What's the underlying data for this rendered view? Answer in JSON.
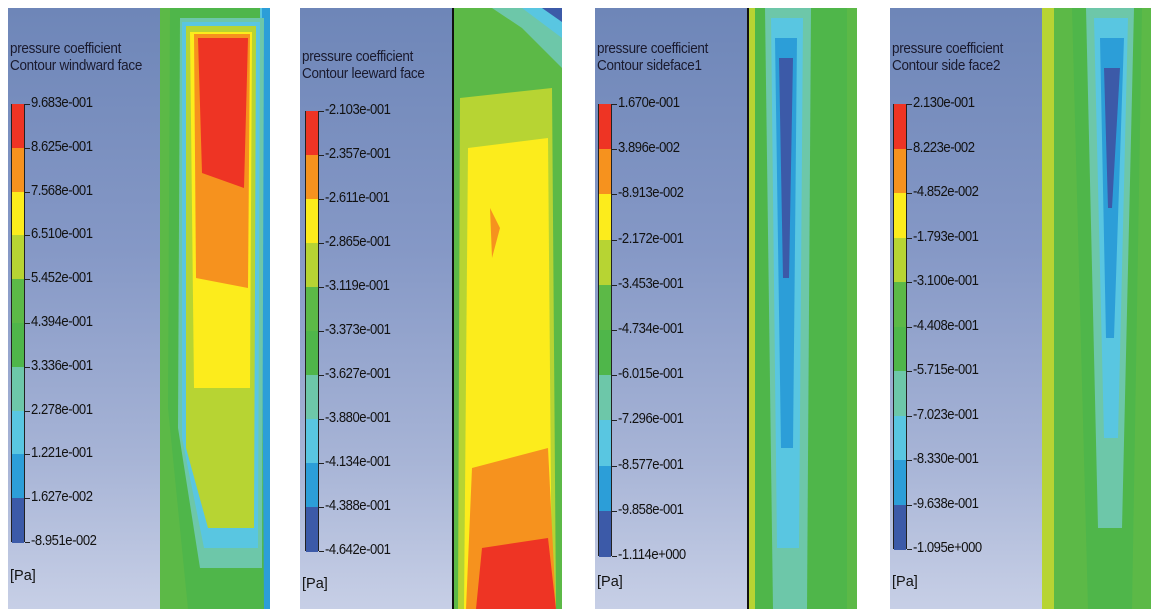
{
  "panels": [
    {
      "title1": "pressure coefficient",
      "title2": "Contour windward face",
      "levels": [
        "9.683e-001",
        "8.625e-001",
        "7.568e-001",
        "6.510e-001",
        "5.452e-001",
        "4.394e-001",
        "3.336e-001",
        "2.278e-001",
        "1.221e-001",
        "1.627e-002",
        "-8.951e-002"
      ],
      "unit": "[Pa]"
    },
    {
      "title1": "pressure coefficient",
      "title2": "Contour leeward face",
      "levels": [
        "-2.103e-001",
        "-2.357e-001",
        "-2.611e-001",
        "-2.865e-001",
        "-3.119e-001",
        "-3.373e-001",
        "-3.627e-001",
        "-3.880e-001",
        "-4.134e-001",
        "-4.388e-001",
        "-4.642e-001"
      ],
      "unit": "[Pa]"
    },
    {
      "title1": "pressure coefficient",
      "title2": "Contour sideface1",
      "levels": [
        "1.670e-001",
        "3.896e-002",
        "-8.913e-002",
        "-2.172e-001",
        "-3.453e-001",
        "-4.734e-001",
        "-6.015e-001",
        "-7.296e-001",
        "-8.577e-001",
        "-9.858e-001",
        "-1.114e+000"
      ],
      "unit": "[Pa]"
    },
    {
      "title1": "pressure coefficient",
      "title2": "Contour side face2",
      "levels": [
        "2.130e-001",
        "8.223e-002",
        "-4.852e-002",
        "-1.793e-001",
        "-3.100e-001",
        "-4.408e-001",
        "-5.715e-001",
        "-7.023e-001",
        "-8.330e-001",
        "-9.638e-001",
        "-1.095e+000"
      ],
      "unit": "[Pa]"
    }
  ],
  "colormap": [
    "#ee3424",
    "#f6921e",
    "#fcec1c",
    "#b7d433",
    "#5cb947",
    "#4fb64a",
    "#6dc7a9",
    "#59c6e1",
    "#2c9ed8",
    "#3c5aa8"
  ]
}
